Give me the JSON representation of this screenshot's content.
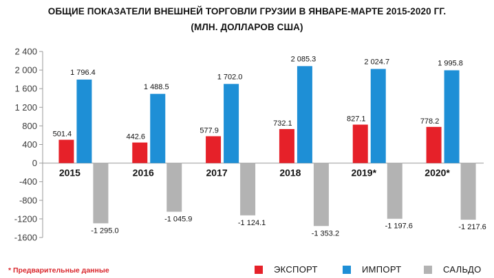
{
  "title_line1": "ОБЩИЕ ПОКАЗАТЕЛИ ВНЕШНЕЙ ТОРГОВЛИ ГРУЗИИ В ЯНВАРЕ-МАРТЕ 2015-2020 ГГ.",
  "title_line2": "(МЛН. ДОЛЛАРОВ США)",
  "footnote": "* Предварительные данные",
  "colors": {
    "export": "#e62129",
    "import": "#1e8fd6",
    "saldo": "#b3b3b3"
  },
  "chart_data": {
    "type": "bar",
    "categories": [
      "2015",
      "2016",
      "2017",
      "2018",
      "2019*",
      "2020*"
    ],
    "series": [
      {
        "name": "ЭКСПОРТ",
        "values": [
          501.4,
          442.6,
          577.9,
          732.1,
          827.1,
          778.2
        ],
        "labels": [
          "501.4",
          "442.6",
          "577.9",
          "732.1",
          "827.1",
          "778.2"
        ]
      },
      {
        "name": "ИМПОРТ",
        "values": [
          1796.4,
          1488.5,
          1702.0,
          2085.3,
          2024.7,
          1995.8
        ],
        "labels": [
          "1 796.4",
          "1 488.5",
          "1 702.0",
          "2 085.3",
          "2 024.7",
          "1 995.8"
        ]
      },
      {
        "name": "САЛЬДО",
        "values": [
          -1295.0,
          -1045.9,
          -1124.1,
          -1353.2,
          -1197.6,
          -1217.6
        ],
        "labels": [
          "-1 295.0",
          "-1 045.9",
          "-1 124.1",
          "-1 353.2",
          "-1 197.6",
          "-1 217.6"
        ]
      }
    ],
    "ylim": [
      -1600,
      2400
    ],
    "yticks": [
      2400,
      2000,
      1600,
      1200,
      800,
      400,
      0,
      -400,
      -800,
      -1200,
      -1600
    ],
    "ytick_labels": [
      "2 400",
      "2 000",
      "1 600",
      "1 200",
      "800",
      "400",
      "0",
      "-400",
      "-800",
      "-1200",
      "-1600"
    ],
    "grid": false,
    "legend_position": "bottom-right"
  }
}
